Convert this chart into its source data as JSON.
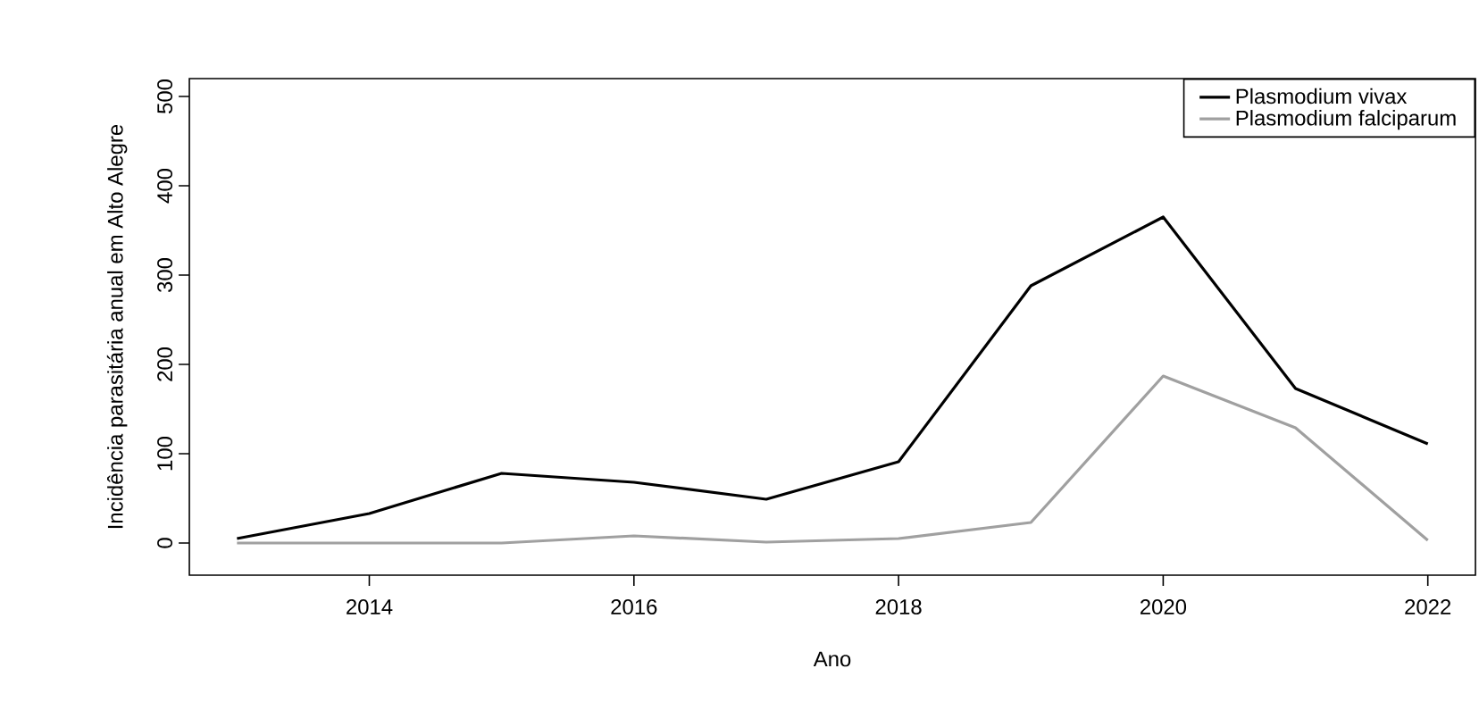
{
  "chart_data": {
    "type": "line",
    "xlabel": "Ano",
    "ylabel": "Incidência parasitária anual em Alto Alegre",
    "x": [
      2013,
      2014,
      2015,
      2016,
      2017,
      2018,
      2019,
      2020,
      2021,
      2022
    ],
    "series": [
      {
        "name": "Plasmodium vivax",
        "color": "#000000",
        "values": [
          5,
          33,
          78,
          68,
          49,
          91,
          288,
          365,
          173,
          111
        ]
      },
      {
        "name": "Plasmodium falciparum",
        "color": "#a0a0a0",
        "values": [
          0,
          0,
          0,
          8,
          1,
          5,
          23,
          187,
          129,
          3
        ]
      }
    ],
    "xlim": [
      2012.64,
      2022.36
    ],
    "ylim": [
      -36,
      520
    ],
    "xticks": [
      2014,
      2016,
      2018,
      2020,
      2022
    ],
    "yticks": [
      0,
      100,
      200,
      300,
      400,
      500
    ],
    "legend": "top right"
  }
}
